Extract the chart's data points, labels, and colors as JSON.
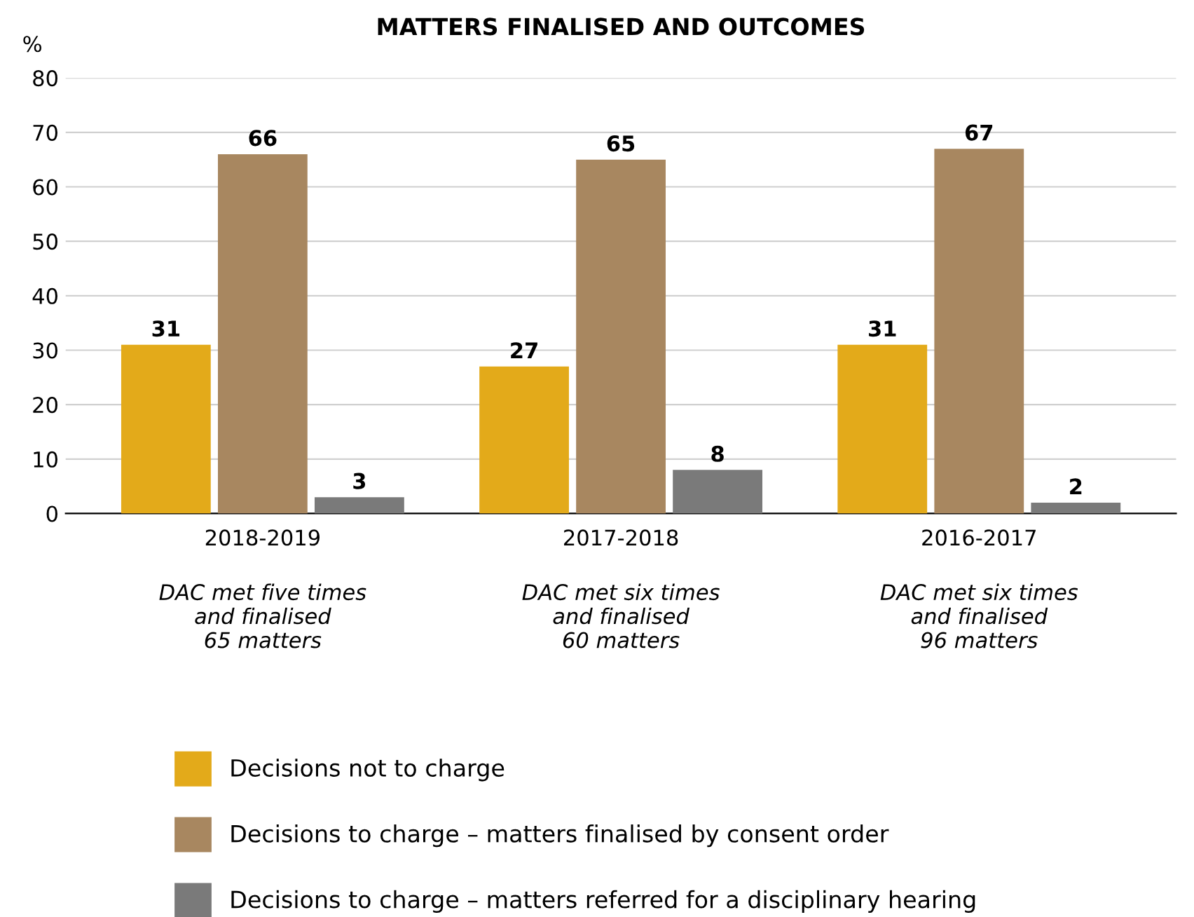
{
  "chart_data": {
    "type": "bar",
    "title": "MATTERS FINALISED AND OUTCOMES",
    "ylabel": "%",
    "categories": [
      "2018-2019",
      "2017-2018",
      "2016-2017"
    ],
    "series": [
      {
        "name": "Decisions not to charge",
        "color": "#e3aa1a",
        "values": [
          31,
          27,
          31
        ]
      },
      {
        "name": "Decisions to charge – matters finalised by consent order",
        "color": "#a88760",
        "values": [
          66,
          65,
          67
        ]
      },
      {
        "name": "Decisions to charge – matters referred for a disciplinary hearing",
        "color": "#7a7a7a",
        "values": [
          3,
          8,
          2
        ]
      }
    ],
    "annotations": [
      "DAC met five times\nand finalised\n65 matters",
      "DAC met six times\nand finalised\n60 matters",
      "DAC met six times\nand finalised\n96 matters"
    ],
    "ylim": [
      0,
      80
    ],
    "yticks": [
      0,
      10,
      20,
      30,
      40,
      50,
      60,
      70,
      80
    ],
    "grid": "y",
    "legend": "bottom",
    "data_labels": true
  }
}
